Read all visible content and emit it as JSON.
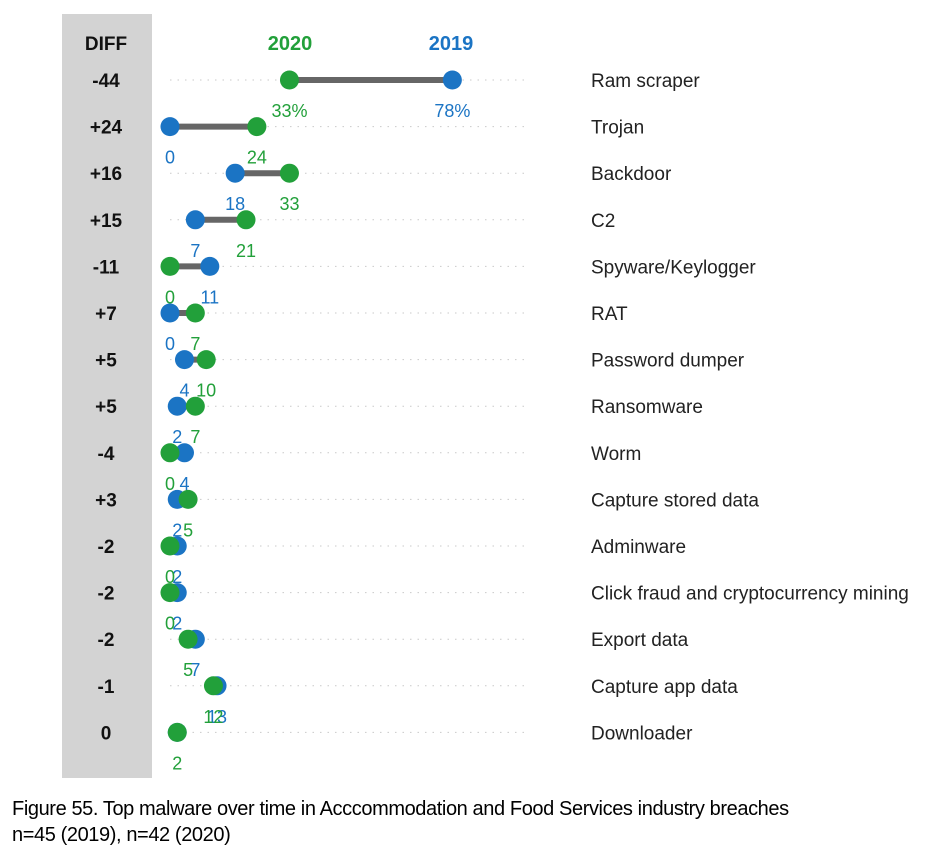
{
  "chart_data": {
    "type": "dumbbell",
    "diff_header": "DIFF",
    "series": [
      {
        "name": "2020",
        "color": "#22a03a"
      },
      {
        "name": "2019",
        "color": "#1b74c4"
      }
    ],
    "connector_color": "#666666",
    "diff_panel_color": "#d3d3d3",
    "rows": [
      {
        "label": "Ram scraper",
        "diff": "-44",
        "v2019": 78,
        "v2020": 33,
        "label2019": "78%",
        "label2020": "33%"
      },
      {
        "label": "Trojan",
        "diff": "+24",
        "v2019": 0,
        "v2020": 24,
        "label2019": "0",
        "label2020": "24"
      },
      {
        "label": "Backdoor",
        "diff": "+16",
        "v2019": 18,
        "v2020": 33,
        "label2019": "18",
        "label2020": "33"
      },
      {
        "label": "C2",
        "diff": "+15",
        "v2019": 7,
        "v2020": 21,
        "label2019": "7",
        "label2020": "21"
      },
      {
        "label": "Spyware/Keylogger",
        "diff": "-11",
        "v2019": 11,
        "v2020": 0,
        "label2019": "11",
        "label2020": "0"
      },
      {
        "label": "RAT",
        "diff": "+7",
        "v2019": 0,
        "v2020": 7,
        "label2019": "0",
        "label2020": "7"
      },
      {
        "label": "Password dumper",
        "diff": "+5",
        "v2019": 4,
        "v2020": 10,
        "label2019": "4",
        "label2020": "10"
      },
      {
        "label": "Ransomware",
        "diff": "+5",
        "v2019": 2,
        "v2020": 7,
        "label2019": "2",
        "label2020": "7"
      },
      {
        "label": "Worm",
        "diff": "-4",
        "v2019": 4,
        "v2020": 0,
        "label2019": "4",
        "label2020": "0"
      },
      {
        "label": "Capture stored data",
        "diff": "+3",
        "v2019": 2,
        "v2020": 5,
        "label2019": "2",
        "label2020": "5"
      },
      {
        "label": "Adminware",
        "diff": "-2",
        "v2019": 2,
        "v2020": 0,
        "label2019": "2",
        "label2020": "0"
      },
      {
        "label": "Click fraud and cryptocurrency mining",
        "diff": "-2",
        "v2019": 2,
        "v2020": 0,
        "label2019": "2",
        "label2020": "0"
      },
      {
        "label": "Export data",
        "diff": "-2",
        "v2019": 7,
        "v2020": 5,
        "label2019": "7",
        "label2020": "5"
      },
      {
        "label": "Capture app data",
        "diff": "-1",
        "v2019": 13,
        "v2020": 12,
        "label2019": "13",
        "label2020": "12"
      },
      {
        "label": "Downloader",
        "diff": "0",
        "v2019": 2,
        "v2020": 2,
        "label2019": "",
        "label2020": "2"
      }
    ]
  },
  "caption": {
    "line1": "Figure 55. Top malware over time in Acccommodation and Food Services industry breaches",
    "line2": "n=45 (2019), n=42 (2020)"
  }
}
